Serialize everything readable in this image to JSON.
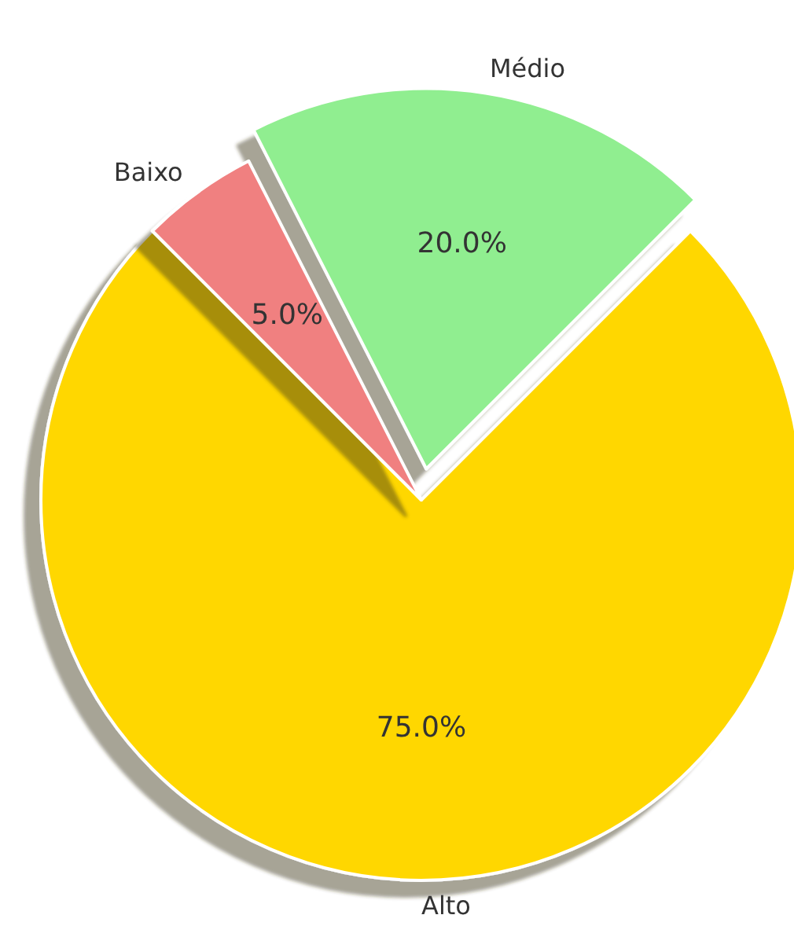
{
  "chart_data": {
    "type": "pie",
    "categories": [
      "Médio",
      "Alto",
      "Baixo"
    ],
    "values": [
      20,
      75,
      5
    ],
    "colors": [
      "#90ee90",
      "#ffd700",
      "#f08080"
    ],
    "value_labels": [
      "20.0%",
      "75.0%",
      "5.0%"
    ]
  }
}
